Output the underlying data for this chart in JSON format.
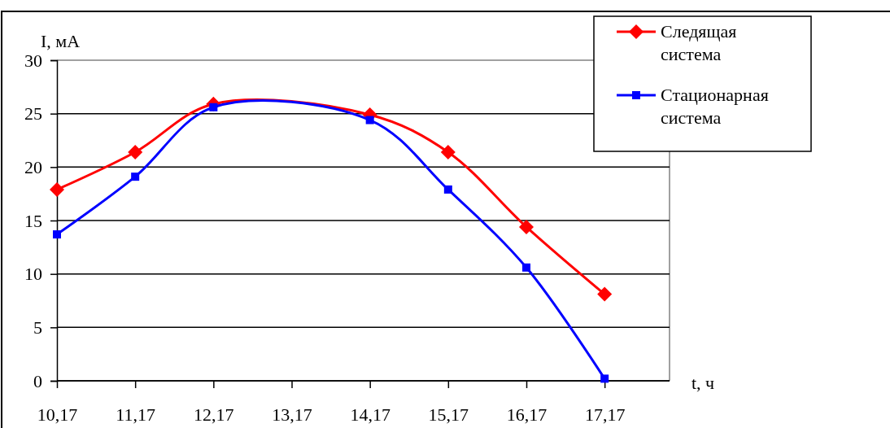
{
  "chart_data": {
    "type": "line",
    "xlabel": "t, ч",
    "ylabel": "I, мА",
    "x": [
      10.17,
      11.17,
      12.17,
      14.17,
      15.17,
      16.17,
      17.17
    ],
    "xlim": [
      10.17,
      18.0
    ],
    "xticks": [
      {
        "value": 10.17,
        "label": "10,17"
      },
      {
        "value": 11.17,
        "label": "11,17"
      },
      {
        "value": 12.17,
        "label": "12,17"
      },
      {
        "value": 13.17,
        "label": "13,17"
      },
      {
        "value": 14.17,
        "label": "14,17"
      },
      {
        "value": 15.17,
        "label": "15,17"
      },
      {
        "value": 16.17,
        "label": "16,17"
      },
      {
        "value": 17.17,
        "label": "17,17"
      }
    ],
    "ylim": [
      0,
      30
    ],
    "yticks": [
      0,
      5,
      10,
      15,
      20,
      25,
      30
    ],
    "grid": "y",
    "legend": "top right",
    "series": [
      {
        "name": "Следящая система",
        "color": "#ff0000",
        "marker": "diamond",
        "values": [
          17.9,
          21.4,
          25.9,
          24.9,
          21.4,
          14.4,
          8.1
        ]
      },
      {
        "name": "Стационарная система",
        "color": "#0000ff",
        "marker": "square",
        "values": [
          13.7,
          19.1,
          25.6,
          24.4,
          17.9,
          10.6,
          0.2
        ]
      }
    ]
  }
}
